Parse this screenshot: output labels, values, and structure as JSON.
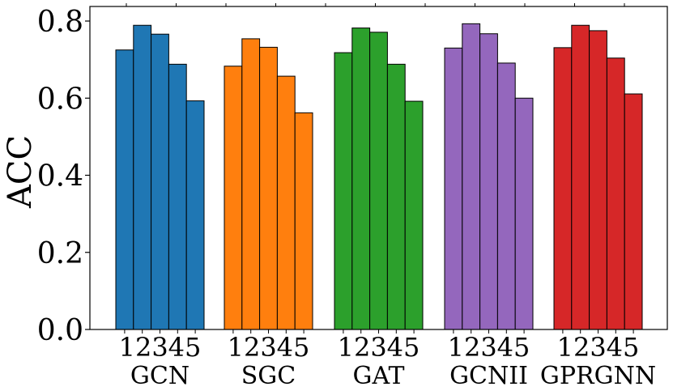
{
  "chart_data": {
    "type": "bar",
    "title": "",
    "xlabel": "",
    "ylabel": "ACC",
    "ylim": [
      0,
      0.84
    ],
    "yticks": [
      0.0,
      0.2,
      0.4,
      0.6,
      0.8
    ],
    "ytick_labels": [
      "0.0",
      "0.2",
      "0.4",
      "0.6",
      "0.8"
    ],
    "grid": false,
    "legend": "none",
    "sub_categories": [
      "1",
      "2",
      "3",
      "4",
      "5"
    ],
    "groups": [
      {
        "name": "GCN",
        "color": "#1f77b4",
        "values": [
          0.725,
          0.789,
          0.766,
          0.688,
          0.593
        ]
      },
      {
        "name": "SGC",
        "color": "#ff7f0e",
        "values": [
          0.683,
          0.754,
          0.732,
          0.657,
          0.562
        ]
      },
      {
        "name": "GAT",
        "color": "#2ca02c",
        "values": [
          0.718,
          0.782,
          0.771,
          0.688,
          0.592
        ]
      },
      {
        "name": "GCNII",
        "color": "#9467bd",
        "values": [
          0.73,
          0.793,
          0.767,
          0.691,
          0.6
        ]
      },
      {
        "name": "GPRGNN",
        "color": "#d62728",
        "values": [
          0.731,
          0.789,
          0.775,
          0.704,
          0.611
        ]
      }
    ]
  }
}
